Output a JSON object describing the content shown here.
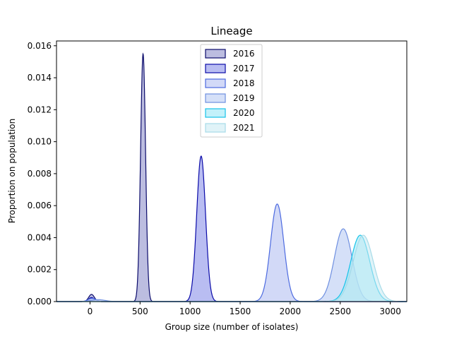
{
  "chart_data": {
    "type": "area",
    "title": "Lineage",
    "xlabel": "Group size (number of isolates)",
    "ylabel": "Proportion on population",
    "xlim": [
      -335,
      3165
    ],
    "ylim": [
      0,
      0.0163
    ],
    "xticks": [
      0,
      500,
      1000,
      1500,
      2000,
      2500,
      3000
    ],
    "yticks": [
      0.0,
      0.002,
      0.004,
      0.006,
      0.008,
      0.01,
      0.012,
      0.014,
      0.016
    ],
    "xtick_labels": [
      "0",
      "500",
      "1000",
      "1500",
      "2000",
      "2500",
      "3000"
    ],
    "ytick_labels": [
      "0.000",
      "0.002",
      "0.004",
      "0.006",
      "0.008",
      "0.010",
      "0.012",
      "0.014",
      "0.016"
    ],
    "grid": false,
    "legend_position": "top-center",
    "series": [
      {
        "name": "2016",
        "fill": "#bcbde0",
        "stroke": "#0b0b6b",
        "fill_opacity": 1.0,
        "peaks": [
          {
            "mu": 530,
            "sigma": 25,
            "h": 0.0155
          },
          {
            "mu": 15,
            "sigma": 28,
            "h": 0.00045
          }
        ]
      },
      {
        "name": "2017",
        "fill": "#b9bdf2",
        "stroke": "#0a0aa8",
        "fill_opacity": 1.0,
        "peaks": [
          {
            "mu": 1110,
            "sigma": 44,
            "h": 0.0091
          },
          {
            "mu": 15,
            "sigma": 30,
            "h": 0.00025
          }
        ]
      },
      {
        "name": "2018",
        "fill": "#c7d0f5",
        "stroke": "#4c6ae0",
        "fill_opacity": 0.8,
        "peaks": [
          {
            "mu": 1870,
            "sigma": 66,
            "h": 0.0061
          },
          {
            "mu": 20,
            "sigma": 40,
            "h": 0.0002
          }
        ]
      },
      {
        "name": "2019",
        "fill": "#c3d3f5",
        "stroke": "#6e8fe0",
        "fill_opacity": 0.7,
        "peaks": [
          {
            "mu": 2530,
            "sigma": 88,
            "h": 0.00455
          },
          {
            "mu": 80,
            "sigma": 70,
            "h": 0.00012
          }
        ]
      },
      {
        "name": "2020",
        "fill": "#9be7f7",
        "stroke": "#17c3e8",
        "fill_opacity": 0.6,
        "peaks": [
          {
            "mu": 2700,
            "sigma": 95,
            "h": 0.00415
          }
        ]
      },
      {
        "name": "2021",
        "fill": "#c6eaf2",
        "stroke": "#a7dbe8",
        "fill_opacity": 0.55,
        "peaks": [
          {
            "mu": 2730,
            "sigma": 100,
            "h": 0.00415
          }
        ]
      }
    ]
  }
}
